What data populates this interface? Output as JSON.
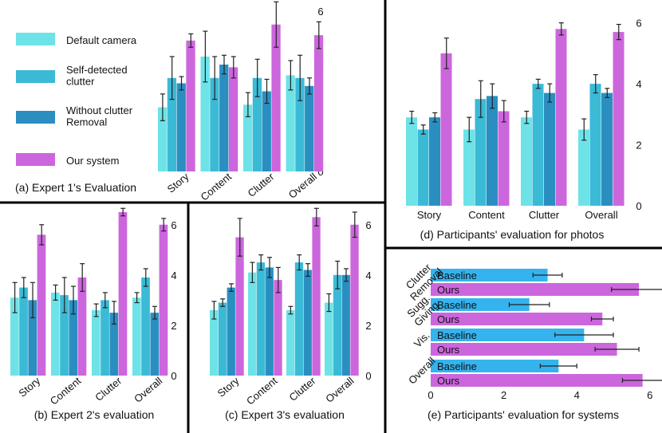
{
  "colors": {
    "default_camera": "#6de3e8",
    "self_detected_clutter": "#3bbad6",
    "without_clutter_removal": "#2a8fc0",
    "our_system": "#cc66dd",
    "baseline": "#35b3ee"
  },
  "legend": [
    {
      "label": "Default camera",
      "color_key": "default_camera"
    },
    {
      "label": "Self-detected\nclutter",
      "color_key": "self_detected_clutter"
    },
    {
      "label": "Without clutter\nRemoval",
      "color_key": "without_clutter_removal"
    },
    {
      "label": "Our system",
      "color_key": "our_system"
    }
  ],
  "chart_data": [
    {
      "id": "a",
      "type": "bar",
      "title": "(a) Expert 1's Evaluation",
      "categories": [
        "Story",
        "Content",
        "Clutter",
        "Overall"
      ],
      "series": [
        {
          "name": "Default camera",
          "values": [
            2.4,
            4.3,
            2.5,
            3.6
          ],
          "errors": [
            0.5,
            0.95,
            0.45,
            0.55
          ]
        },
        {
          "name": "Self-detected clutter",
          "values": [
            3.5,
            3.5,
            3.5,
            3.5
          ],
          "errors": [
            0.8,
            0.8,
            0.7,
            0.85
          ]
        },
        {
          "name": "Without clutter Removal",
          "values": [
            3.3,
            4.0,
            3.0,
            3.2
          ],
          "errors": [
            0.25,
            0.35,
            0.45,
            0.3
          ]
        },
        {
          "name": "Our system",
          "values": [
            4.9,
            3.9,
            5.5,
            5.1
          ],
          "errors": [
            0.25,
            0.4,
            0.85,
            0.5
          ]
        }
      ],
      "ylim": [
        0,
        6
      ],
      "yticks": [
        0,
        2,
        4,
        6
      ],
      "ytick_side": "right",
      "xtick_rotation": -40
    },
    {
      "id": "b",
      "type": "bar",
      "title": "(b) Expert 2's evaluation",
      "categories": [
        "Story",
        "Content",
        "Clutter",
        "Overall"
      ],
      "series": [
        {
          "name": "Default camera",
          "values": [
            3.1,
            3.3,
            2.6,
            3.1
          ],
          "errors": [
            0.6,
            0.3,
            0.25,
            0.2
          ]
        },
        {
          "name": "Self-detected clutter",
          "values": [
            3.5,
            3.2,
            3.0,
            3.9
          ],
          "errors": [
            0.4,
            0.7,
            0.3,
            0.35
          ]
        },
        {
          "name": "Without clutter Removal",
          "values": [
            3.0,
            3.0,
            2.5,
            2.5
          ],
          "errors": [
            0.7,
            0.55,
            0.45,
            0.25
          ]
        },
        {
          "name": "Our system",
          "values": [
            5.6,
            3.9,
            6.5,
            6.0
          ],
          "errors": [
            0.4,
            0.55,
            0.15,
            0.25
          ]
        }
      ],
      "ylim": [
        0,
        6.5
      ],
      "yticks": [
        0,
        2,
        4,
        6
      ],
      "ytick_side": "right",
      "xtick_rotation": -40
    },
    {
      "id": "c",
      "type": "bar",
      "title": "(c) Expert 3's evaluation",
      "categories": [
        "Story",
        "Content",
        "Clutter",
        "Overall"
      ],
      "series": [
        {
          "name": "Default camera",
          "values": [
            2.6,
            4.1,
            2.6,
            2.9
          ],
          "errors": [
            0.35,
            0.4,
            0.15,
            0.35
          ]
        },
        {
          "name": "Self-detected clutter",
          "values": [
            2.9,
            4.5,
            4.5,
            4.0
          ],
          "errors": [
            0.15,
            0.3,
            0.3,
            0.55
          ]
        },
        {
          "name": "Without clutter Removal",
          "values": [
            3.5,
            4.3,
            4.2,
            4.0
          ],
          "errors": [
            0.15,
            0.4,
            0.25,
            0.25
          ]
        },
        {
          "name": "Our system",
          "values": [
            5.5,
            3.8,
            6.3,
            6.0
          ],
          "errors": [
            0.75,
            0.5,
            0.35,
            0.5
          ]
        }
      ],
      "ylim": [
        0,
        6.5
      ],
      "yticks": [
        0,
        2,
        4,
        6
      ],
      "ytick_side": "right",
      "xtick_rotation": -40
    },
    {
      "id": "d",
      "type": "bar",
      "title": "(d) Participants' evaluation for photos",
      "categories": [
        "Story",
        "Content",
        "Clutter",
        "Overall"
      ],
      "series": [
        {
          "name": "Default camera",
          "values": [
            2.9,
            2.5,
            2.9,
            2.5
          ],
          "errors": [
            0.2,
            0.4,
            0.2,
            0.35
          ]
        },
        {
          "name": "Self-detected clutter",
          "values": [
            2.5,
            3.5,
            4.0,
            4.0
          ],
          "errors": [
            0.15,
            0.6,
            0.15,
            0.3
          ]
        },
        {
          "name": "Without clutter Removal",
          "values": [
            2.9,
            3.6,
            3.7,
            3.7
          ],
          "errors": [
            0.15,
            0.4,
            0.3,
            0.15
          ]
        },
        {
          "name": "Our system",
          "values": [
            5.0,
            3.1,
            5.8,
            5.7
          ],
          "errors": [
            0.5,
            0.35,
            0.2,
            0.25
          ]
        }
      ],
      "ylim": [
        0,
        6.2
      ],
      "yticks": [
        0,
        2,
        4,
        6
      ],
      "ytick_side": "right"
    },
    {
      "id": "e",
      "type": "bar",
      "orientation": "horizontal",
      "title": "(e) Participants' evaluation for systems",
      "groups": [
        "Clutter\nRemoval",
        "Sugg.\nGiving",
        "Vis.",
        "Overall"
      ],
      "series": [
        {
          "name": "Baseline",
          "values": [
            3.2,
            2.7,
            4.2,
            3.5
          ],
          "errors": [
            0.4,
            0.55,
            0.8,
            0.5
          ]
        },
        {
          "name": "Ours",
          "values": [
            5.7,
            4.7,
            5.1,
            5.8
          ],
          "errors": [
            0.75,
            0.3,
            0.6,
            0.55
          ]
        }
      ],
      "bar_labels": {
        "Baseline": "Baseline",
        "Ours": "Ours"
      },
      "xlim": [
        0,
        6.5
      ],
      "xticks": [
        0,
        2,
        4,
        6
      ],
      "group_label_rotation": -45
    }
  ]
}
